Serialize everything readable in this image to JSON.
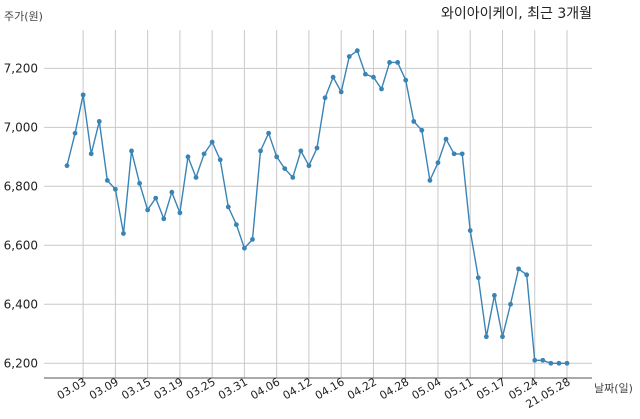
{
  "chart_data": {
    "type": "line",
    "title": "와이아이케이, 최근 3개월",
    "ylabel": "주가(원)",
    "xlabel": "날짜(일)",
    "ylim": [
      6150,
      7330
    ],
    "y_ticks": [
      6200,
      6400,
      6600,
      6800,
      7000,
      7200
    ],
    "y_tick_labels": [
      "6,200",
      "6,400",
      "6,600",
      "6,800",
      "7,000",
      "7,200"
    ],
    "x_tick_labels": [
      "03.03",
      "03.09",
      "03.15",
      "03.19",
      "03.25",
      "03.31",
      "04.06",
      "04.12",
      "04.16",
      "04.22",
      "04.28",
      "05.04",
      "05.11",
      "05.17",
      "05.24",
      "21.05.28"
    ],
    "x_tick_index": [
      2,
      6,
      10,
      14,
      18,
      22,
      26,
      30,
      34,
      38,
      42,
      46,
      50,
      54,
      58,
      62
    ],
    "grid": true,
    "color": "#3a84b5",
    "series": [
      {
        "values": [
          6870,
          6980,
          7110,
          6910,
          7020,
          6820,
          6790,
          6640,
          6920,
          6810,
          6720,
          6760,
          6690,
          6780,
          6710,
          6900,
          6830,
          6910,
          6950,
          6890,
          6730,
          6670,
          6590,
          6620,
          6920,
          6980,
          6900,
          6860,
          6830,
          6920,
          6870,
          6930,
          7100,
          7170,
          7120,
          7240,
          7260,
          7180,
          7170,
          7130,
          7220,
          7220,
          7160,
          7020,
          6990,
          6820,
          6880,
          6960,
          6910,
          6910,
          6650,
          6490,
          6290,
          6430,
          6290,
          6400,
          6520,
          6500,
          6210,
          6210,
          6200,
          6200,
          6200
        ]
      }
    ]
  }
}
